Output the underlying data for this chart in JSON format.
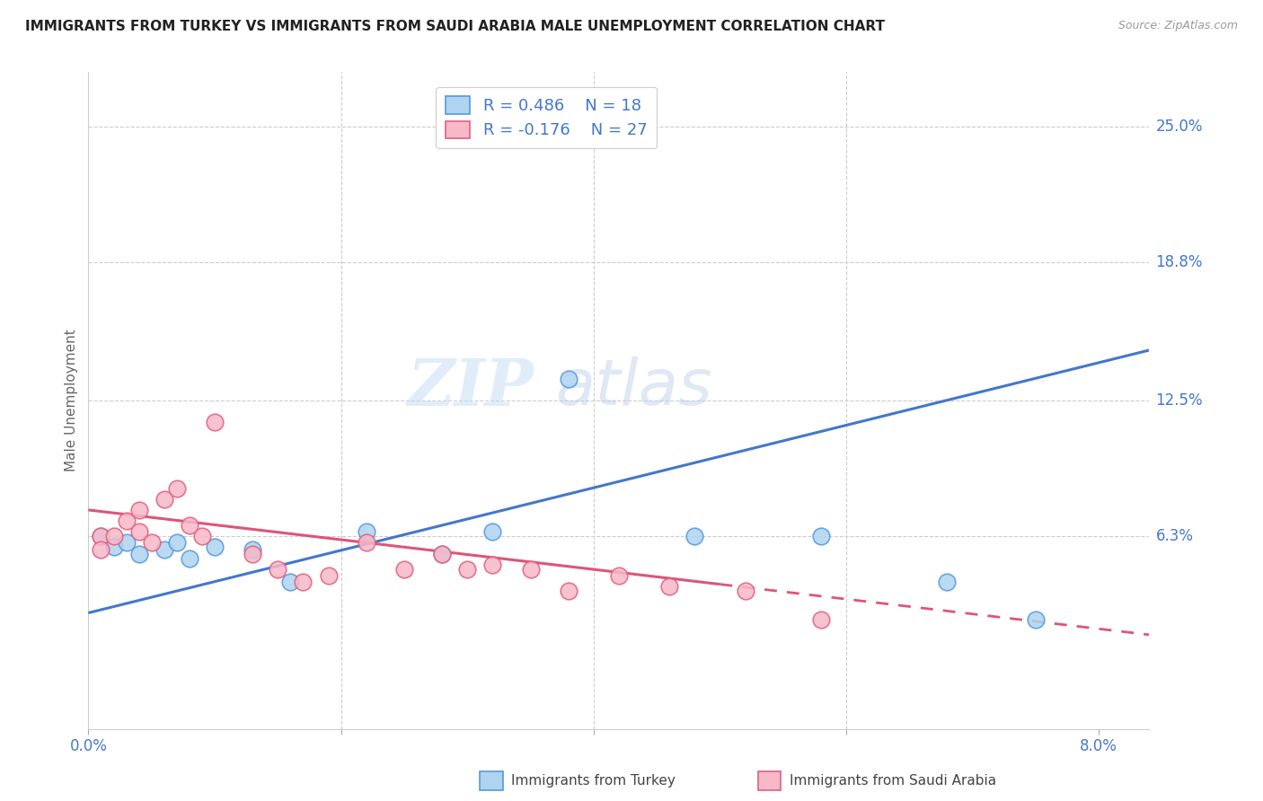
{
  "title": "IMMIGRANTS FROM TURKEY VS IMMIGRANTS FROM SAUDI ARABIA MALE UNEMPLOYMENT CORRELATION CHART",
  "source": "Source: ZipAtlas.com",
  "ylabel": "Male Unemployment",
  "ytick_labels": [
    "25.0%",
    "18.8%",
    "12.5%",
    "6.3%"
  ],
  "ytick_values": [
    0.25,
    0.188,
    0.125,
    0.063
  ],
  "xlim": [
    0.0,
    0.084
  ],
  "ylim": [
    -0.025,
    0.275
  ],
  "legend_r_turkey": "R = 0.486",
  "legend_n_turkey": "N = 18",
  "legend_r_saudi": "R = -0.176",
  "legend_n_saudi": "N = 27",
  "turkey_color": "#aed4f0",
  "turkey_edge_color": "#5599dd",
  "saudi_color": "#f7b8c8",
  "saudi_edge_color": "#e06080",
  "turkey_line_color": "#4477cc",
  "saudi_line_color": "#dd5577",
  "watermark_zip": "ZIP",
  "watermark_atlas": "atlas",
  "turkey_scatter_x": [
    0.001,
    0.002,
    0.003,
    0.004,
    0.006,
    0.007,
    0.008,
    0.01,
    0.013,
    0.016,
    0.022,
    0.028,
    0.032,
    0.038,
    0.048,
    0.058,
    0.068,
    0.075
  ],
  "turkey_scatter_y": [
    0.063,
    0.058,
    0.06,
    0.055,
    0.057,
    0.06,
    0.053,
    0.058,
    0.057,
    0.042,
    0.065,
    0.055,
    0.065,
    0.135,
    0.063,
    0.063,
    0.042,
    0.025
  ],
  "saudi_scatter_x": [
    0.001,
    0.001,
    0.002,
    0.003,
    0.004,
    0.004,
    0.005,
    0.006,
    0.007,
    0.008,
    0.009,
    0.01,
    0.013,
    0.015,
    0.017,
    0.019,
    0.022,
    0.025,
    0.028,
    0.03,
    0.032,
    0.035,
    0.038,
    0.042,
    0.046,
    0.052,
    0.058
  ],
  "saudi_scatter_y": [
    0.063,
    0.057,
    0.063,
    0.07,
    0.075,
    0.065,
    0.06,
    0.08,
    0.085,
    0.068,
    0.063,
    0.115,
    0.055,
    0.048,
    0.042,
    0.045,
    0.06,
    0.048,
    0.055,
    0.048,
    0.05,
    0.048,
    0.038,
    0.045,
    0.04,
    0.038,
    0.025
  ],
  "turkey_line_x": [
    0.0,
    0.084
  ],
  "turkey_line_y": [
    0.028,
    0.148
  ],
  "saudi_line_x": [
    0.0,
    0.084
  ],
  "saudi_line_y": [
    0.075,
    0.018
  ],
  "background_color": "#ffffff",
  "grid_color": "#cccccc"
}
